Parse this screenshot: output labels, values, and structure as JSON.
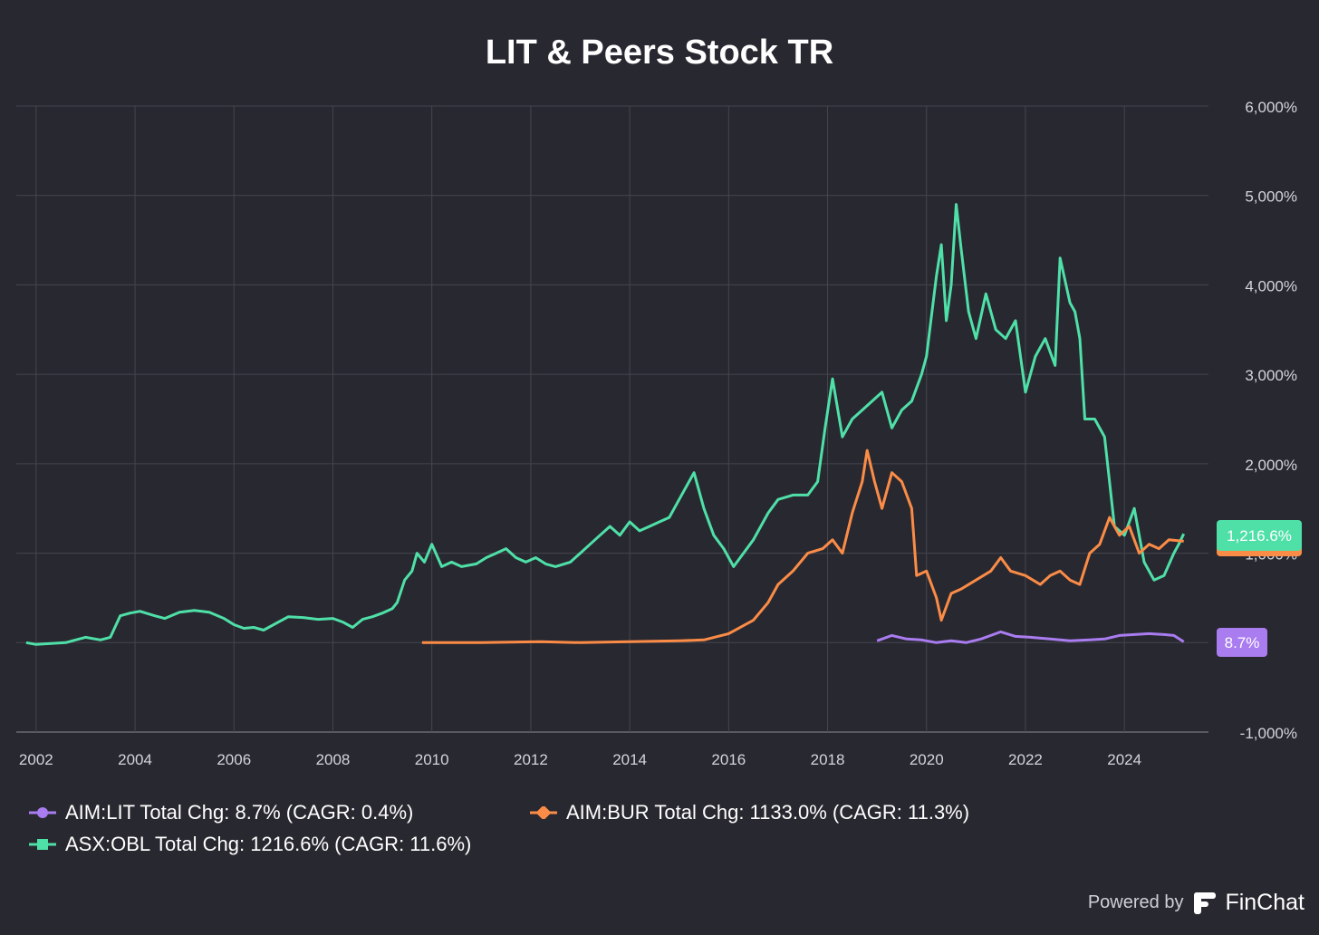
{
  "chart_data": {
    "type": "line",
    "title": "LIT & Peers Stock TR",
    "x_ticks": [
      "2002",
      "2004",
      "2006",
      "2008",
      "2010",
      "2012",
      "2014",
      "2016",
      "2018",
      "2020",
      "2022",
      "2024"
    ],
    "y_ticks": [
      "6,000%",
      "5,000%",
      "4,000%",
      "3,000%",
      "2,000%",
      "1,000%",
      "-1,000%"
    ],
    "y_tick_values": [
      6000,
      5000,
      4000,
      3000,
      2000,
      1000,
      -1000
    ],
    "ylim": [
      -1000,
      6000
    ],
    "xlim": [
      2001.6,
      2025.7
    ],
    "grid": true,
    "series": [
      {
        "name": "ASX:OBL",
        "color": "#4fe0a8",
        "end_label": "1,216.6%",
        "legend": "ASX:OBL Total Chg: 1216.6% (CAGR: 11.6%)",
        "points": [
          [
            2001.8,
            0
          ],
          [
            2002.0,
            -20
          ],
          [
            2002.3,
            -10
          ],
          [
            2002.6,
            0
          ],
          [
            2002.8,
            30
          ],
          [
            2003.0,
            60
          ],
          [
            2003.3,
            30
          ],
          [
            2003.5,
            60
          ],
          [
            2003.7,
            300
          ],
          [
            2003.9,
            330
          ],
          [
            2004.1,
            350
          ],
          [
            2004.4,
            300
          ],
          [
            2004.6,
            270
          ],
          [
            2004.9,
            340
          ],
          [
            2005.2,
            360
          ],
          [
            2005.5,
            340
          ],
          [
            2005.8,
            270
          ],
          [
            2006.0,
            200
          ],
          [
            2006.2,
            160
          ],
          [
            2006.4,
            170
          ],
          [
            2006.6,
            140
          ],
          [
            2006.9,
            230
          ],
          [
            2007.1,
            290
          ],
          [
            2007.4,
            280
          ],
          [
            2007.7,
            260
          ],
          [
            2008.0,
            270
          ],
          [
            2008.2,
            230
          ],
          [
            2008.4,
            170
          ],
          [
            2008.6,
            260
          ],
          [
            2008.8,
            290
          ],
          [
            2009.0,
            330
          ],
          [
            2009.2,
            380
          ],
          [
            2009.3,
            450
          ],
          [
            2009.45,
            700
          ],
          [
            2009.6,
            800
          ],
          [
            2009.7,
            1000
          ],
          [
            2009.85,
            900
          ],
          [
            2010.0,
            1100
          ],
          [
            2010.2,
            850
          ],
          [
            2010.4,
            900
          ],
          [
            2010.6,
            850
          ],
          [
            2010.9,
            880
          ],
          [
            2011.1,
            950
          ],
          [
            2011.3,
            1000
          ],
          [
            2011.5,
            1050
          ],
          [
            2011.7,
            950
          ],
          [
            2011.9,
            900
          ],
          [
            2012.1,
            950
          ],
          [
            2012.3,
            880
          ],
          [
            2012.5,
            850
          ],
          [
            2012.8,
            900
          ],
          [
            2013.0,
            1000
          ],
          [
            2013.2,
            1100
          ],
          [
            2013.4,
            1200
          ],
          [
            2013.6,
            1300
          ],
          [
            2013.8,
            1200
          ],
          [
            2014.0,
            1350
          ],
          [
            2014.2,
            1250
          ],
          [
            2014.4,
            1300
          ],
          [
            2014.6,
            1350
          ],
          [
            2014.8,
            1400
          ],
          [
            2015.0,
            1600
          ],
          [
            2015.3,
            1900
          ],
          [
            2015.5,
            1500
          ],
          [
            2015.7,
            1200
          ],
          [
            2015.9,
            1050
          ],
          [
            2016.1,
            850
          ],
          [
            2016.3,
            1000
          ],
          [
            2016.5,
            1150
          ],
          [
            2016.8,
            1450
          ],
          [
            2017.0,
            1600
          ],
          [
            2017.3,
            1650
          ],
          [
            2017.6,
            1650
          ],
          [
            2017.8,
            1800
          ],
          [
            2017.95,
            2400
          ],
          [
            2018.1,
            2950
          ],
          [
            2018.3,
            2300
          ],
          [
            2018.5,
            2500
          ],
          [
            2018.7,
            2600
          ],
          [
            2018.9,
            2700
          ],
          [
            2019.1,
            2800
          ],
          [
            2019.3,
            2400
          ],
          [
            2019.5,
            2600
          ],
          [
            2019.7,
            2700
          ],
          [
            2019.9,
            3000
          ],
          [
            2020.0,
            3200
          ],
          [
            2020.2,
            4100
          ],
          [
            2020.3,
            4450
          ],
          [
            2020.4,
            3600
          ],
          [
            2020.5,
            4000
          ],
          [
            2020.6,
            4900
          ],
          [
            2020.7,
            4400
          ],
          [
            2020.85,
            3700
          ],
          [
            2021.0,
            3400
          ],
          [
            2021.2,
            3900
          ],
          [
            2021.4,
            3500
          ],
          [
            2021.6,
            3400
          ],
          [
            2021.8,
            3600
          ],
          [
            2022.0,
            2800
          ],
          [
            2022.2,
            3200
          ],
          [
            2022.4,
            3400
          ],
          [
            2022.6,
            3100
          ],
          [
            2022.7,
            4300
          ],
          [
            2022.9,
            3800
          ],
          [
            2023.0,
            3700
          ],
          [
            2023.1,
            3400
          ],
          [
            2023.2,
            2500
          ],
          [
            2023.4,
            2500
          ],
          [
            2023.6,
            2300
          ],
          [
            2023.8,
            1300
          ],
          [
            2024.0,
            1200
          ],
          [
            2024.2,
            1500
          ],
          [
            2024.4,
            900
          ],
          [
            2024.6,
            700
          ],
          [
            2024.8,
            750
          ],
          [
            2025.0,
            1000
          ],
          [
            2025.1,
            1100
          ],
          [
            2025.2,
            1216.6
          ]
        ]
      },
      {
        "name": "AIM:BUR",
        "color": "#fb8c47",
        "end_label": "1,133.0%",
        "legend": "AIM:BUR Total Chg: 1133.0% (CAGR: 11.3%)",
        "points": [
          [
            2009.8,
            0
          ],
          [
            2011.0,
            0
          ],
          [
            2012.2,
            10
          ],
          [
            2013.0,
            0
          ],
          [
            2014.0,
            10
          ],
          [
            2015.0,
            20
          ],
          [
            2015.5,
            30
          ],
          [
            2016.0,
            100
          ],
          [
            2016.5,
            250
          ],
          [
            2016.8,
            450
          ],
          [
            2017.0,
            650
          ],
          [
            2017.3,
            800
          ],
          [
            2017.6,
            1000
          ],
          [
            2017.9,
            1050
          ],
          [
            2018.1,
            1150
          ],
          [
            2018.3,
            1000
          ],
          [
            2018.5,
            1450
          ],
          [
            2018.7,
            1800
          ],
          [
            2018.8,
            2150
          ],
          [
            2018.95,
            1800
          ],
          [
            2019.1,
            1500
          ],
          [
            2019.3,
            1900
          ],
          [
            2019.5,
            1800
          ],
          [
            2019.7,
            1500
          ],
          [
            2019.8,
            750
          ],
          [
            2020.0,
            800
          ],
          [
            2020.2,
            500
          ],
          [
            2020.3,
            250
          ],
          [
            2020.5,
            550
          ],
          [
            2020.7,
            600
          ],
          [
            2021.0,
            700
          ],
          [
            2021.3,
            800
          ],
          [
            2021.5,
            950
          ],
          [
            2021.7,
            800
          ],
          [
            2022.0,
            750
          ],
          [
            2022.3,
            650
          ],
          [
            2022.5,
            750
          ],
          [
            2022.7,
            800
          ],
          [
            2022.9,
            700
          ],
          [
            2023.1,
            650
          ],
          [
            2023.3,
            1000
          ],
          [
            2023.5,
            1100
          ],
          [
            2023.7,
            1400
          ],
          [
            2023.9,
            1200
          ],
          [
            2024.1,
            1300
          ],
          [
            2024.3,
            1000
          ],
          [
            2024.5,
            1100
          ],
          [
            2024.7,
            1050
          ],
          [
            2024.9,
            1150
          ],
          [
            2025.2,
            1133
          ]
        ]
      },
      {
        "name": "AIM:LIT",
        "color": "#a97cf0",
        "end_label": "8.7%",
        "legend": "AIM:LIT Total Chg: 8.7% (CAGR: 0.4%)",
        "points": [
          [
            2019.0,
            20
          ],
          [
            2019.3,
            80
          ],
          [
            2019.6,
            40
          ],
          [
            2019.9,
            30
          ],
          [
            2020.2,
            0
          ],
          [
            2020.5,
            20
          ],
          [
            2020.8,
            0
          ],
          [
            2021.1,
            40
          ],
          [
            2021.3,
            80
          ],
          [
            2021.5,
            120
          ],
          [
            2021.8,
            70
          ],
          [
            2022.1,
            60
          ],
          [
            2022.5,
            40
          ],
          [
            2022.9,
            20
          ],
          [
            2023.3,
            30
          ],
          [
            2023.6,
            40
          ],
          [
            2023.9,
            80
          ],
          [
            2024.2,
            90
          ],
          [
            2024.5,
            100
          ],
          [
            2024.8,
            90
          ],
          [
            2025.0,
            80
          ],
          [
            2025.2,
            8.7
          ]
        ]
      }
    ]
  },
  "footer": {
    "powered_by": "Powered by",
    "brand": "FinChat"
  }
}
